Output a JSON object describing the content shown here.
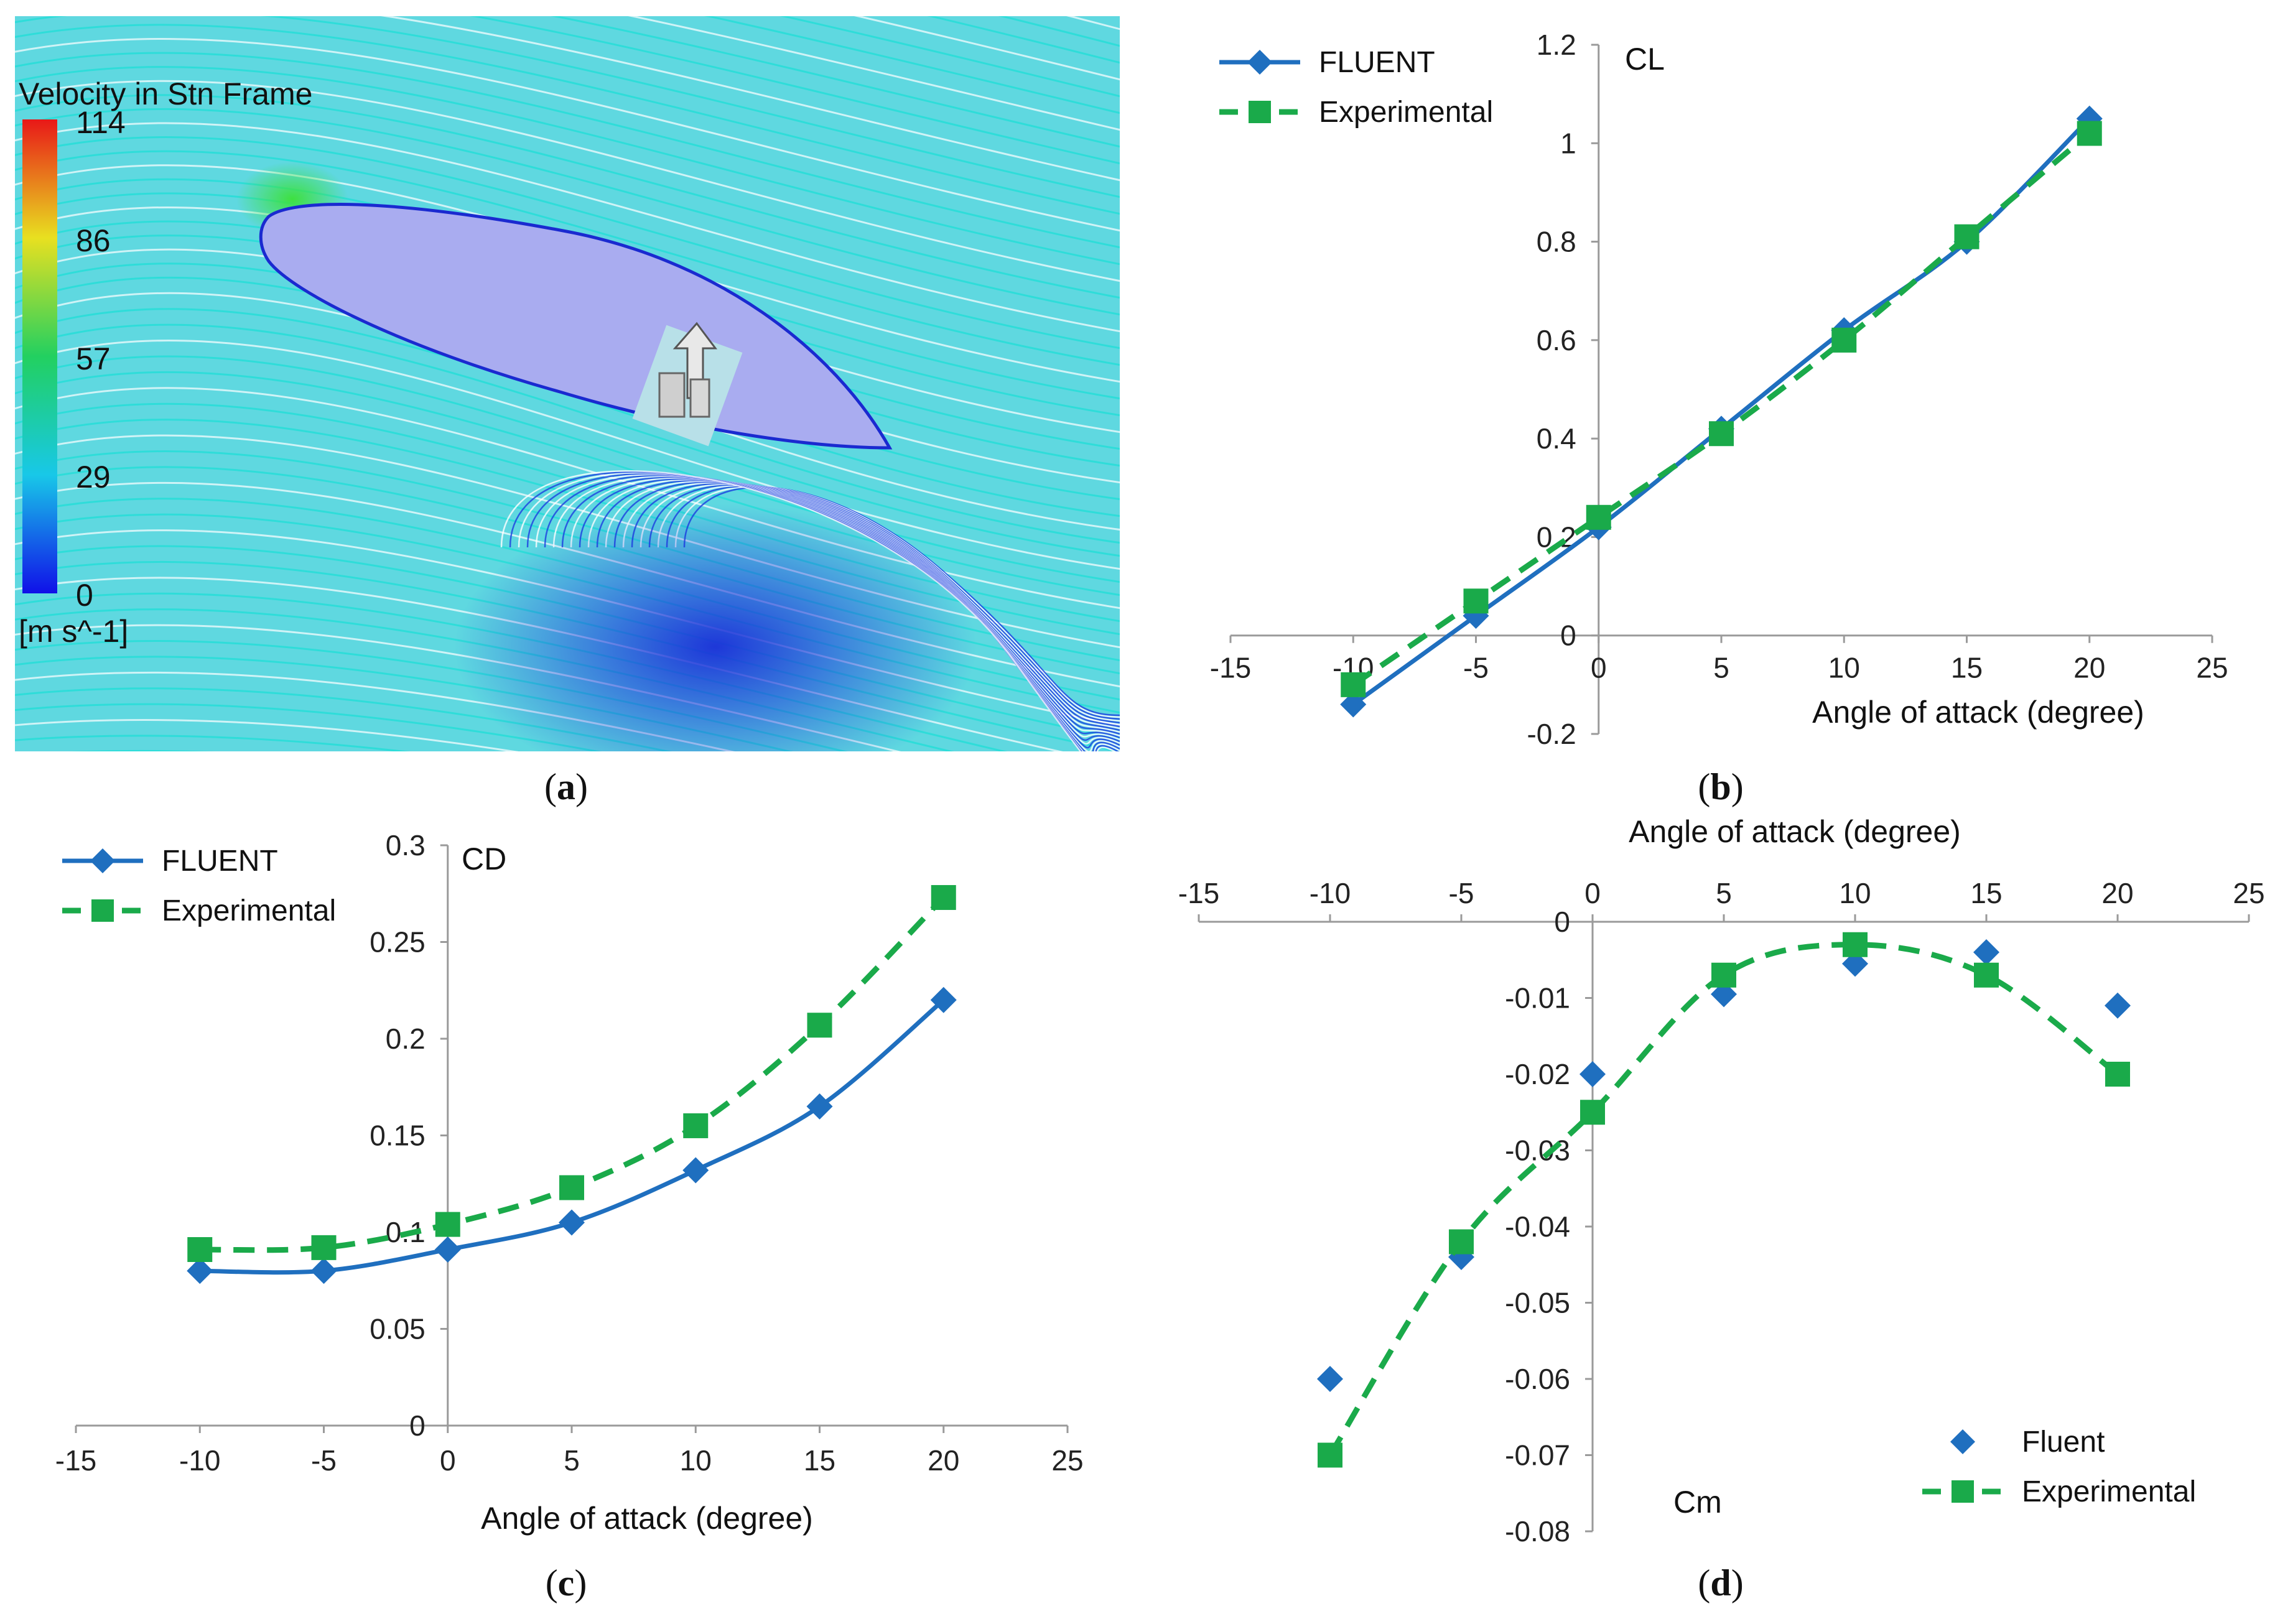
{
  "panels": {
    "a": {
      "label_open": "(",
      "label_letter": "a",
      "label_close": ")",
      "colorbar_title": "Velocity in Stn Frame",
      "colorbar_ticks": [
        "114",
        "86",
        "57",
        "29",
        "0"
      ],
      "colorbar_unit": "[m s^-1]"
    },
    "b": {
      "label_open": "(",
      "label_letter": "b",
      "label_close": ")"
    },
    "c": {
      "label_open": "(",
      "label_letter": "c",
      "label_close": ")"
    },
    "d": {
      "label_open": "(",
      "label_letter": "d",
      "label_close": ")"
    }
  },
  "colors": {
    "fluent": "#1f6fbf",
    "experimental": "#1aaa4a",
    "airfoil": "#a9acf0",
    "stream_fast": "#19e0d6",
    "stream_slow": "#1c3fe0"
  },
  "chart_data": [
    {
      "id": "b",
      "type": "line",
      "title": "CL",
      "xlabel": "Angle of attack (degree)",
      "ylabel": "CL",
      "xlim": [
        -15,
        25
      ],
      "ylim": [
        -0.2,
        1.2
      ],
      "x_ticks": [
        -15,
        -10,
        -5,
        0,
        5,
        10,
        15,
        20,
        25
      ],
      "y_ticks": [
        -0.2,
        0,
        0.2,
        0.4,
        0.6,
        0.8,
        1,
        1.2
      ],
      "legend": "top-left",
      "series": [
        {
          "name": "FLUENT",
          "style": "solid-diamond",
          "x": [
            -10,
            -5,
            0,
            5,
            10,
            15,
            20
          ],
          "y": [
            -0.14,
            0.04,
            0.22,
            0.42,
            0.62,
            0.8,
            1.05
          ]
        },
        {
          "name": "Experimental",
          "style": "dashed-square",
          "x": [
            -10,
            -5,
            0,
            5,
            10,
            15,
            20
          ],
          "y": [
            -0.1,
            0.07,
            0.24,
            0.41,
            0.6,
            0.81,
            1.02
          ]
        }
      ]
    },
    {
      "id": "c",
      "type": "line",
      "title": "CD",
      "xlabel": "Angle of attack (degree)",
      "ylabel": "CD",
      "xlim": [
        -15,
        25
      ],
      "ylim": [
        0,
        0.3
      ],
      "x_ticks": [
        -15,
        -10,
        -5,
        0,
        5,
        10,
        15,
        20,
        25
      ],
      "y_ticks": [
        0,
        0.05,
        0.1,
        0.15,
        0.2,
        0.25,
        0.3
      ],
      "legend": "top-left",
      "series": [
        {
          "name": "FLUENT",
          "style": "solid-diamond",
          "x": [
            -10,
            -5,
            0,
            5,
            10,
            15,
            20
          ],
          "y": [
            0.08,
            0.08,
            0.091,
            0.105,
            0.132,
            0.165,
            0.22
          ]
        },
        {
          "name": "Experimental",
          "style": "dashed-square",
          "x": [
            -10,
            -5,
            0,
            5,
            10,
            15,
            20
          ],
          "y": [
            0.091,
            0.092,
            0.104,
            0.123,
            0.155,
            0.207,
            0.273
          ]
        }
      ]
    },
    {
      "id": "d",
      "type": "scatter",
      "title": "Cm",
      "xlabel": "Angle of attack (degree)",
      "ylabel": "Cm",
      "xlim": [
        -15,
        25
      ],
      "ylim": [
        -0.08,
        0
      ],
      "x_ticks": [
        -15,
        -10,
        -5,
        0,
        5,
        10,
        15,
        20,
        25
      ],
      "y_ticks": [
        -0.08,
        -0.07,
        -0.06,
        -0.05,
        -0.04,
        -0.03,
        -0.02,
        -0.01,
        0
      ],
      "legend": "bottom-right",
      "series": [
        {
          "name": "Fluent",
          "style": "marker-diamond",
          "x": [
            -10,
            -5,
            0,
            5,
            10,
            15,
            20
          ],
          "y": [
            -0.06,
            -0.044,
            -0.02,
            -0.0095,
            -0.0055,
            -0.004,
            -0.011
          ]
        },
        {
          "name": "Experimental",
          "style": "dashed-square",
          "x": [
            -10,
            -5,
            0,
            5,
            10,
            15,
            20
          ],
          "y": [
            -0.07,
            -0.042,
            -0.025,
            -0.007,
            -0.003,
            -0.007,
            -0.02
          ]
        }
      ]
    }
  ]
}
